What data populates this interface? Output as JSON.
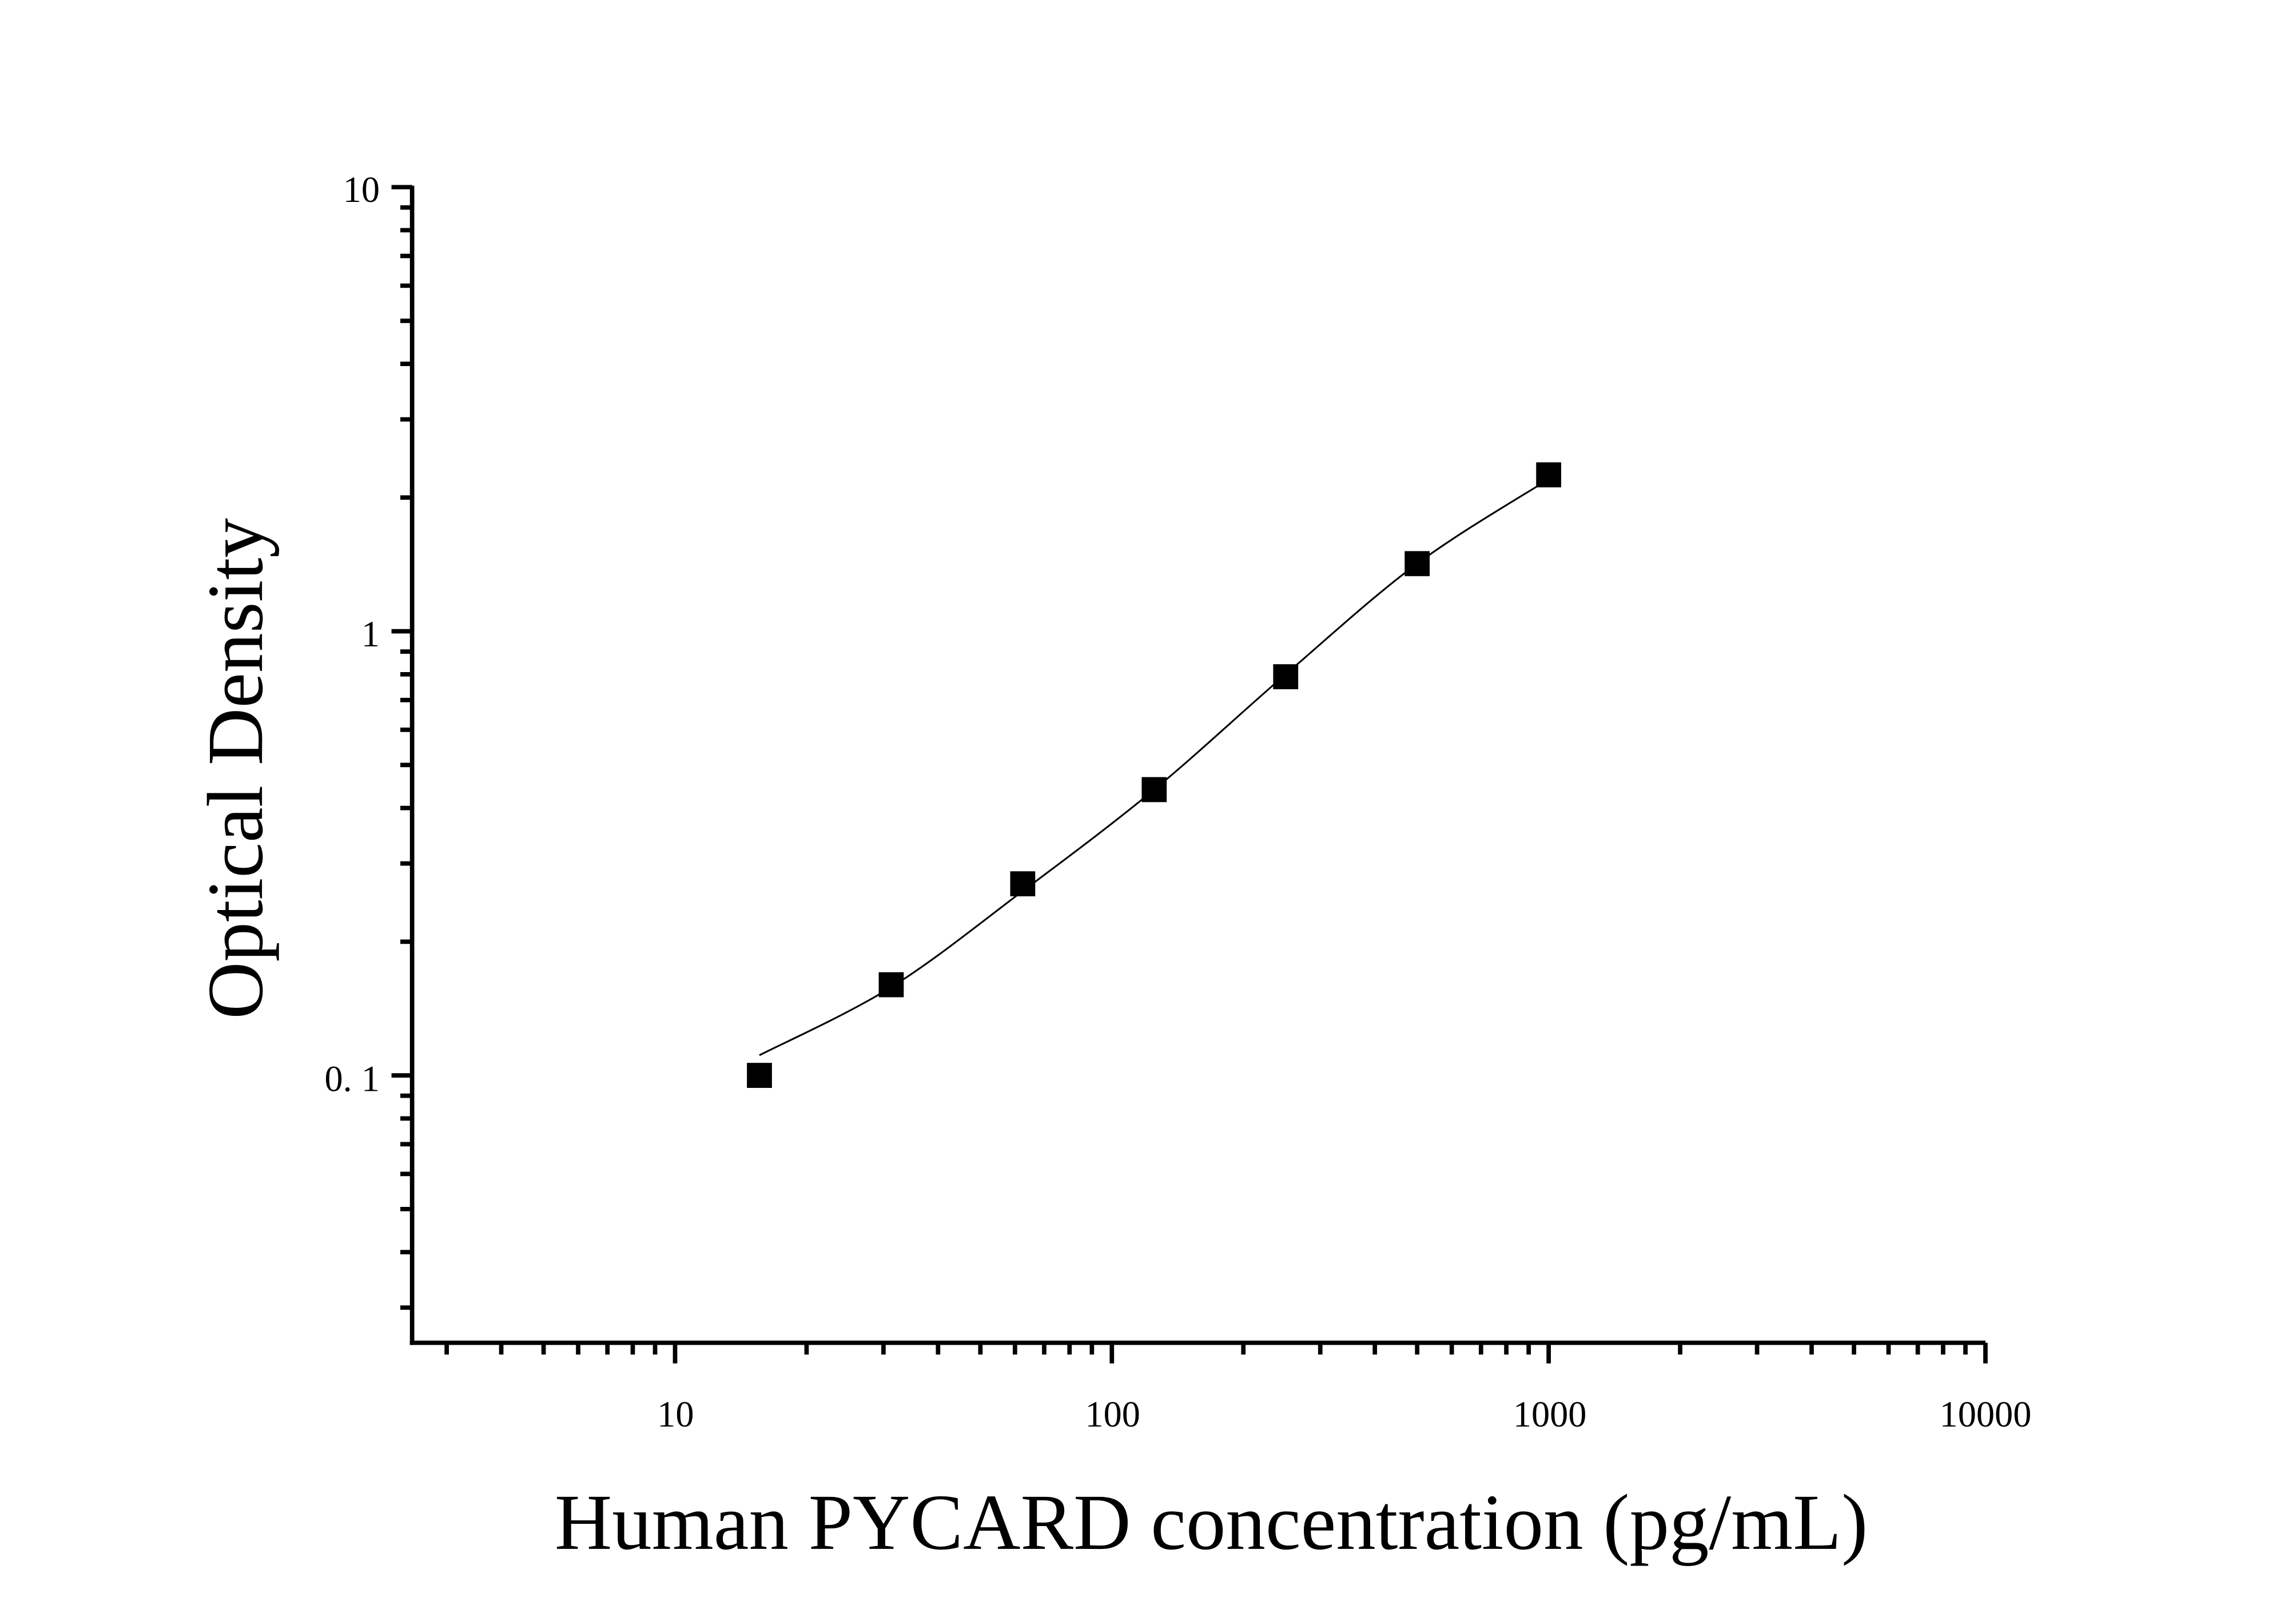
{
  "chart_data": {
    "type": "scatter",
    "title": "",
    "xlabel": "Human PYCARD concentration (pg/mL)",
    "ylabel": "Optical Density",
    "x_scale": "log",
    "y_scale": "log",
    "xlim": [
      2.5,
      10000
    ],
    "ylim": [
      0.025,
      10
    ],
    "x_ticks": [
      10,
      100,
      1000,
      10000
    ],
    "x_tick_labels": [
      "10",
      "100",
      "1000",
      "10000"
    ],
    "y_ticks": [
      0.1,
      1,
      10
    ],
    "y_tick_labels": [
      "0. 1",
      "1",
      "10"
    ],
    "grid": false,
    "legend": "none",
    "marker": "square",
    "color": "#000000",
    "series": [
      {
        "x": [
          15.6,
          31.25,
          62.5,
          125,
          250,
          500,
          1000
        ],
        "y": [
          0.1,
          0.16,
          0.27,
          0.44,
          0.79,
          1.42,
          2.25
        ]
      }
    ],
    "fit_curve": {
      "x": [
        15.6,
        31.25,
        62.5,
        125,
        250,
        500,
        1000
      ],
      "y": [
        0.111,
        0.158,
        0.26,
        0.44,
        0.8,
        1.42,
        2.2
      ]
    }
  }
}
